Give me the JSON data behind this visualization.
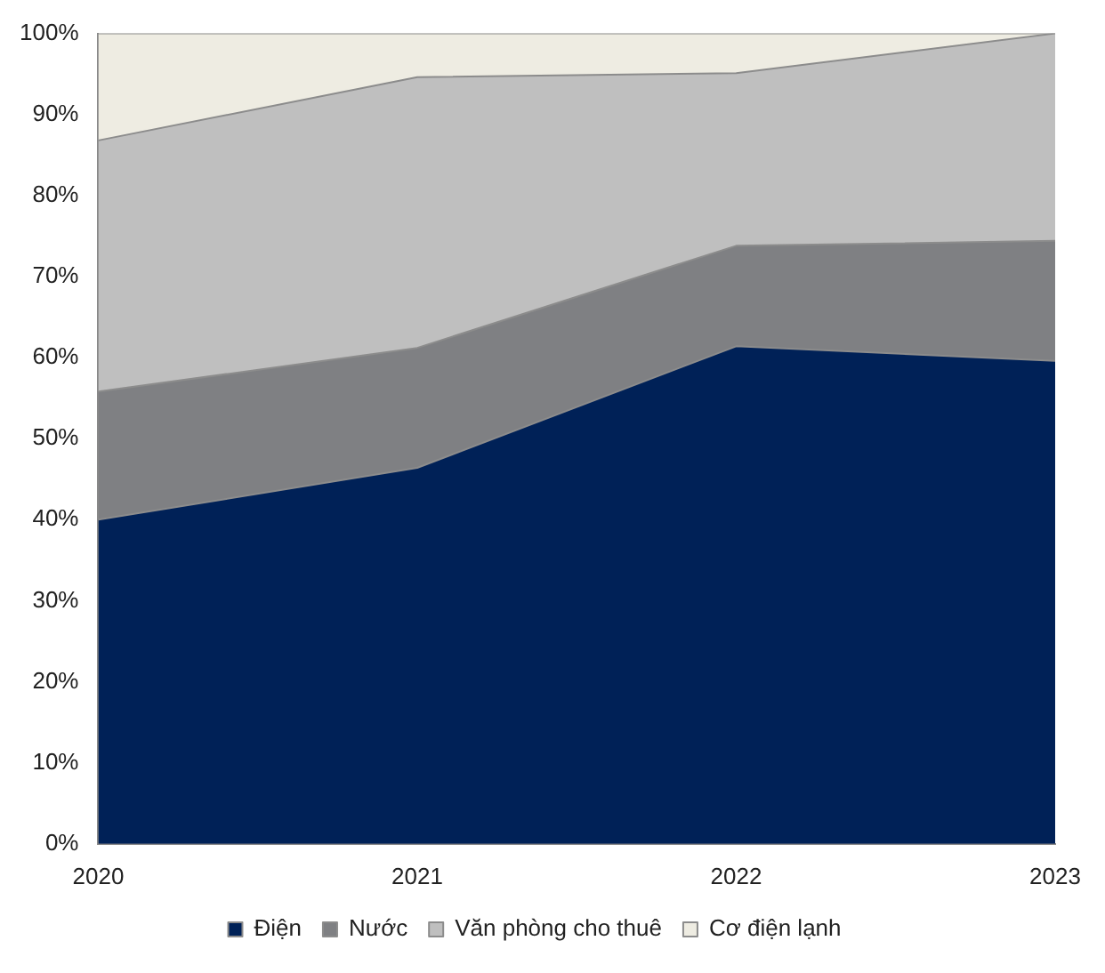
{
  "chart_data": {
    "type": "area",
    "stacked": true,
    "categories": [
      "2020",
      "2021",
      "2022",
      "2023"
    ],
    "series": [
      {
        "name": "Điện",
        "color": "#002157",
        "values": [
          40,
          46.4,
          61.4,
          59.6
        ]
      },
      {
        "name": "Nước",
        "color": "#7f8083",
        "values": [
          15.8,
          14.8,
          12.4,
          14.8
        ]
      },
      {
        "name": "Văn phòng cho thuê",
        "color": "#bfbfbf",
        "values": [
          31,
          33.4,
          21.3,
          25.6
        ]
      },
      {
        "name": "Cơ điện lạnh",
        "color": "#eeece2",
        "values": [
          13.2,
          5.4,
          4.9,
          0
        ]
      }
    ],
    "ylim": [
      0,
      100
    ],
    "yticks": [
      {
        "value": 0,
        "label": "0%"
      },
      {
        "value": 10,
        "label": "10%"
      },
      {
        "value": 20,
        "label": "20%"
      },
      {
        "value": 30,
        "label": "30%"
      },
      {
        "value": 40,
        "label": "40%"
      },
      {
        "value": 50,
        "label": "50%"
      },
      {
        "value": 60,
        "label": "60%"
      },
      {
        "value": 70,
        "label": "70%"
      },
      {
        "value": 80,
        "label": "80%"
      },
      {
        "value": 90,
        "label": "90%"
      },
      {
        "value": 100,
        "label": "100%"
      }
    ],
    "grid": false,
    "legend": "bottom"
  }
}
